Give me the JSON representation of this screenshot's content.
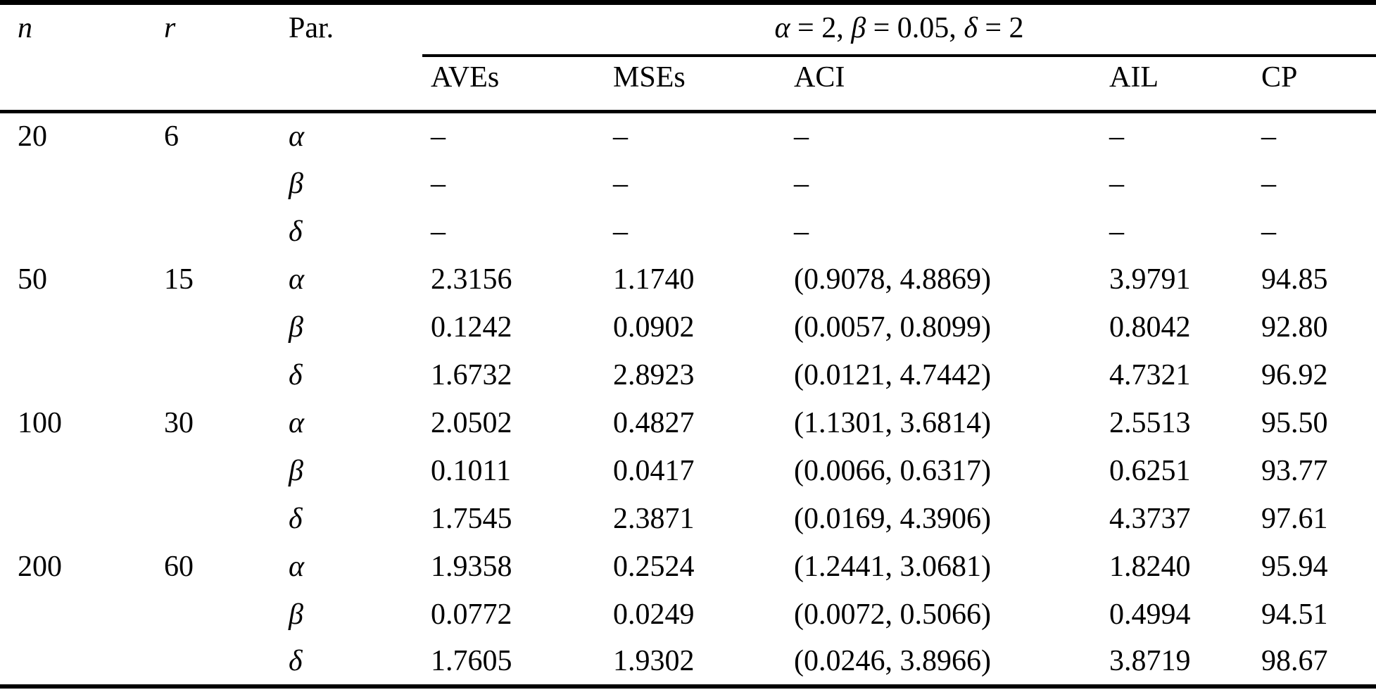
{
  "table": {
    "columns": {
      "n": "n",
      "r": "r",
      "par": "Par.",
      "condition": "α = 2, β = 0.05, δ = 2",
      "aves": "AVEs",
      "mses": "MSEs",
      "aci": "ACI",
      "ail": "AIL",
      "cp": "CP"
    },
    "colors": {
      "rule": "#000000",
      "background": "#ffffff",
      "text": "#000000"
    },
    "rows": [
      {
        "n": "20",
        "r": "6",
        "par": "α",
        "aves": "–",
        "mses": "–",
        "aci": "–",
        "ail": "–",
        "cp": "–"
      },
      {
        "n": "",
        "r": "",
        "par": "β",
        "aves": "–",
        "mses": "–",
        "aci": "–",
        "ail": "–",
        "cp": "–"
      },
      {
        "n": "",
        "r": "",
        "par": "δ",
        "aves": "–",
        "mses": "–",
        "aci": "–",
        "ail": "–",
        "cp": "–"
      },
      {
        "n": "50",
        "r": "15",
        "par": "α",
        "aves": "2.3156",
        "mses": "1.1740",
        "aci": "(0.9078, 4.8869)",
        "ail": "3.9791",
        "cp": "94.85"
      },
      {
        "n": "",
        "r": "",
        "par": "β",
        "aves": "0.1242",
        "mses": "0.0902",
        "aci": "(0.0057, 0.8099)",
        "ail": "0.8042",
        "cp": "92.80"
      },
      {
        "n": "",
        "r": "",
        "par": "δ",
        "aves": "1.6732",
        "mses": "2.8923",
        "aci": "(0.0121, 4.7442)",
        "ail": "4.7321",
        "cp": "96.92"
      },
      {
        "n": "100",
        "r": "30",
        "par": "α",
        "aves": "2.0502",
        "mses": "0.4827",
        "aci": "(1.1301, 3.6814)",
        "ail": "2.5513",
        "cp": "95.50"
      },
      {
        "n": "",
        "r": "",
        "par": "β",
        "aves": "0.1011",
        "mses": "0.0417",
        "aci": "(0.0066, 0.6317)",
        "ail": "0.6251",
        "cp": "93.77"
      },
      {
        "n": "",
        "r": "",
        "par": "δ",
        "aves": "1.7545",
        "mses": "2.3871",
        "aci": "(0.0169, 4.3906)",
        "ail": "4.3737",
        "cp": "97.61"
      },
      {
        "n": "200",
        "r": "60",
        "par": "α",
        "aves": "1.9358",
        "mses": "0.2524",
        "aci": "(1.2441, 3.0681)",
        "ail": "1.8240",
        "cp": "95.94"
      },
      {
        "n": "",
        "r": "",
        "par": "β",
        "aves": "0.0772",
        "mses": "0.0249",
        "aci": "(0.0072, 0.5066)",
        "ail": "0.4994",
        "cp": "94.51"
      },
      {
        "n": "",
        "r": "",
        "par": "δ",
        "aves": "1.7605",
        "mses": "1.9302",
        "aci": "(0.0246, 3.8966)",
        "ail": "3.8719",
        "cp": "98.67"
      }
    ]
  }
}
